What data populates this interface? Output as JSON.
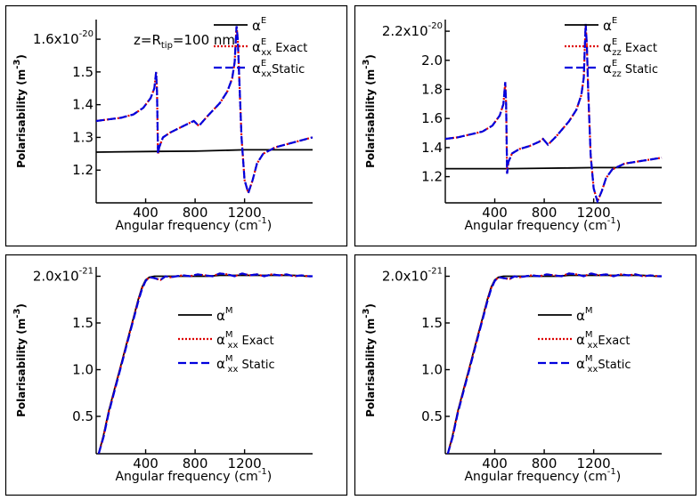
{
  "chart_data": [
    {
      "type": "line",
      "id": "p1",
      "annotation": {
        "parts": [
          {
            "t": "z=R"
          },
          {
            "t": "tip",
            "sub": true
          },
          {
            "t": "=100 nm"
          }
        ]
      },
      "xlabel": "Angular frequency (cm-1)",
      "xlabel_base": "Angular frequency (cm",
      "xlabel_sup": "-1",
      "xlabel_close": ")",
      "ylabel": "Polarisability (m-3)",
      "ylabel_base": "Polarisability (m",
      "ylabel_sup": "-3",
      "ylabel_close": ")",
      "xlim": [
        0,
        1750
      ],
      "ylim": [
        1.1,
        1.66
      ],
      "xticks": [
        400,
        800,
        1200
      ],
      "xticklabels": [
        "400",
        "800",
        "1200"
      ],
      "yticks": [
        1.2,
        1.3,
        1.4,
        1.5,
        1.6
      ],
      "yticklabels": [
        "1.2",
        "1.3",
        "1.4",
        "1.5",
        "1.6x10-20"
      ],
      "ytop_label": {
        "base": "1.6x10",
        "exp": "-20"
      },
      "legend": [
        {
          "label": "αE",
          "sym": "α",
          "sup": "E",
          "sub": "",
          "tail": ""
        },
        {
          "label": "αExx Exact",
          "sym": "α",
          "sup": "E",
          "sub": "xx",
          "tail": " Exact"
        },
        {
          "label": "αExx Static",
          "sym": "α",
          "sup": "E",
          "sub": "xx",
          "tail": "Static"
        }
      ],
      "series": [
        {
          "name": "αE",
          "style": "solid",
          "x": [
            0,
            500,
            800,
            1000,
            1200,
            1400,
            1750
          ],
          "y": [
            1.255,
            1.257,
            1.258,
            1.26,
            1.262,
            1.262,
            1.262
          ]
        },
        {
          "name": "αExx Exact",
          "style": "dotted",
          "x": [
            0,
            100,
            200,
            300,
            380,
            440,
            470,
            485,
            492,
            500,
            510,
            540,
            600,
            680,
            760,
            790,
            830,
            900,
            1000,
            1060,
            1100,
            1120,
            1135,
            1145,
            1155,
            1175,
            1200,
            1230,
            1265,
            1300,
            1350,
            1450,
            1600,
            1750
          ],
          "y": [
            1.35,
            1.355,
            1.36,
            1.37,
            1.39,
            1.42,
            1.45,
            1.5,
            1.44,
            1.25,
            1.27,
            1.3,
            1.315,
            1.33,
            1.345,
            1.35,
            1.335,
            1.365,
            1.405,
            1.44,
            1.48,
            1.53,
            1.64,
            1.6,
            1.5,
            1.3,
            1.17,
            1.13,
            1.17,
            1.22,
            1.25,
            1.27,
            1.285,
            1.3
          ]
        },
        {
          "name": "αExx Static",
          "style": "dashed",
          "x": [
            0,
            100,
            200,
            300,
            380,
            440,
            470,
            485,
            492,
            500,
            510,
            540,
            600,
            680,
            760,
            790,
            830,
            900,
            1000,
            1060,
            1100,
            1120,
            1135,
            1145,
            1155,
            1175,
            1200,
            1230,
            1265,
            1300,
            1350,
            1450,
            1600,
            1750
          ],
          "y": [
            1.35,
            1.355,
            1.36,
            1.37,
            1.39,
            1.42,
            1.45,
            1.5,
            1.44,
            1.25,
            1.27,
            1.3,
            1.315,
            1.33,
            1.345,
            1.35,
            1.335,
            1.365,
            1.405,
            1.44,
            1.48,
            1.53,
            1.64,
            1.6,
            1.5,
            1.3,
            1.17,
            1.13,
            1.17,
            1.22,
            1.25,
            1.27,
            1.285,
            1.3
          ]
        }
      ]
    },
    {
      "type": "line",
      "id": "p2",
      "xlabel": "Angular frequency (cm-1)",
      "xlabel_base": "Angular frequency (cm",
      "xlabel_sup": "-1",
      "xlabel_close": ")",
      "ylabel": "Polarisability (m-3)",
      "ylabel_base": "Polarisability (m",
      "ylabel_sup": "-3",
      "ylabel_close": ")",
      "xlim": [
        0,
        1750
      ],
      "ylim": [
        1.02,
        2.28
      ],
      "xticks": [
        400,
        800,
        1200
      ],
      "xticklabels": [
        "400",
        "800",
        "1200"
      ],
      "yticks": [
        1.2,
        1.4,
        1.6,
        1.8,
        2.0,
        2.2
      ],
      "yticklabels": [
        "1.2",
        "1.4",
        "1.6",
        "1.8",
        "2.0",
        "2.2x10-20"
      ],
      "ytop_label": {
        "base": "2.2x10",
        "exp": "-20"
      },
      "legend": [
        {
          "label": "αE",
          "sym": "α",
          "sup": "E",
          "sub": "",
          "tail": ""
        },
        {
          "label": "αEzz Exact",
          "sym": "α",
          "sup": "E",
          "sub": "zz",
          "tail": " Exact"
        },
        {
          "label": "αEzz Static",
          "sym": "α",
          "sup": "E",
          "sub": "zz",
          "tail": " Static"
        }
      ],
      "series": [
        {
          "name": "αE",
          "style": "solid",
          "x": [
            0,
            500,
            800,
            1000,
            1200,
            1400,
            1750
          ],
          "y": [
            1.255,
            1.255,
            1.258,
            1.26,
            1.262,
            1.262,
            1.262
          ]
        },
        {
          "name": "αEzz Exact",
          "style": "dotted",
          "x": [
            0,
            100,
            200,
            300,
            380,
            440,
            470,
            485,
            492,
            500,
            510,
            540,
            600,
            680,
            760,
            790,
            830,
            900,
            1000,
            1060,
            1100,
            1120,
            1135,
            1145,
            1155,
            1175,
            1200,
            1230,
            1265,
            1300,
            1350,
            1450,
            1600,
            1750
          ],
          "y": [
            1.46,
            1.47,
            1.49,
            1.51,
            1.55,
            1.62,
            1.7,
            1.85,
            1.7,
            1.22,
            1.3,
            1.36,
            1.39,
            1.41,
            1.44,
            1.46,
            1.42,
            1.48,
            1.58,
            1.66,
            1.76,
            1.88,
            2.25,
            2.1,
            1.8,
            1.35,
            1.12,
            1.03,
            1.1,
            1.19,
            1.25,
            1.29,
            1.31,
            1.33
          ]
        },
        {
          "name": "αEzz Static",
          "style": "dashed",
          "x": [
            0,
            100,
            200,
            300,
            380,
            440,
            470,
            485,
            492,
            500,
            510,
            540,
            600,
            680,
            760,
            790,
            830,
            900,
            1000,
            1060,
            1100,
            1120,
            1135,
            1145,
            1155,
            1175,
            1200,
            1230,
            1265,
            1300,
            1350,
            1450,
            1600,
            1750
          ],
          "y": [
            1.46,
            1.47,
            1.49,
            1.51,
            1.55,
            1.62,
            1.7,
            1.85,
            1.7,
            1.22,
            1.3,
            1.36,
            1.39,
            1.41,
            1.44,
            1.46,
            1.42,
            1.48,
            1.58,
            1.66,
            1.76,
            1.88,
            2.25,
            2.1,
            1.8,
            1.35,
            1.12,
            1.03,
            1.1,
            1.19,
            1.25,
            1.29,
            1.31,
            1.33
          ]
        }
      ]
    },
    {
      "type": "line",
      "id": "p3",
      "xlabel": "Angular frequency (cm-1)",
      "xlabel_base": "Angular frequency (cm",
      "xlabel_sup": "-1",
      "xlabel_close": ")",
      "ylabel": "Polarisability (m-3)",
      "ylabel_base": "Polarisability (m",
      "ylabel_sup": "-3",
      "ylabel_close": ")",
      "xlim": [
        0,
        1750
      ],
      "ylim": [
        0.1,
        2.1
      ],
      "xticks": [
        400,
        800,
        1200
      ],
      "xticklabels": [
        "400",
        "800",
        "1200"
      ],
      "yticks": [
        0.5,
        1.0,
        1.5,
        2.0
      ],
      "yticklabels": [
        "0.5",
        "1.0",
        "1.5",
        "2.0x10-21"
      ],
      "ytop_label": {
        "base": "2.0x10",
        "exp": "-21"
      },
      "legend": [
        {
          "label": "αM",
          "sym": "α",
          "sup": "M",
          "sub": "",
          "tail": ""
        },
        {
          "label": "αMxx Exact",
          "sym": "α",
          "sup": "M",
          "sub": "xx",
          "tail": " Exact"
        },
        {
          "label": "αMxx Static",
          "sym": "α",
          "sup": "M",
          "sub": "xx",
          "tail": " Static"
        }
      ],
      "series": [
        {
          "name": "αM",
          "style": "solid",
          "x": [
            20,
            60,
            100,
            150,
            200,
            250,
            300,
            340,
            370,
            400,
            430,
            470,
            520,
            600,
            700,
            800,
            900,
            1000,
            1100,
            1200,
            1300,
            1400,
            1500,
            1600,
            1700,
            1750
          ],
          "y": [
            0.1,
            0.3,
            0.55,
            0.8,
            1.05,
            1.3,
            1.55,
            1.75,
            1.88,
            1.96,
            1.99,
            2.0,
            2.0,
            2.0,
            2.0,
            2.0,
            2.0,
            2.01,
            2.01,
            2.01,
            2.01,
            2.01,
            2.01,
            2.01,
            2.0,
            2.0
          ]
        },
        {
          "name": "αMxx Exact",
          "style": "dotted",
          "x": [
            20,
            60,
            100,
            150,
            200,
            250,
            300,
            340,
            370,
            400,
            430,
            470,
            520,
            560,
            600,
            650,
            700,
            760,
            820,
            880,
            940,
            1000,
            1060,
            1120,
            1180,
            1240,
            1300,
            1360,
            1420,
            1480,
            1540,
            1600,
            1660,
            1720,
            1750
          ],
          "y": [
            0.1,
            0.29,
            0.54,
            0.79,
            1.04,
            1.29,
            1.54,
            1.74,
            1.87,
            1.95,
            1.99,
            1.98,
            1.96,
            2.0,
            1.99,
            2.0,
            2.01,
            2.0,
            2.02,
            2.01,
            2.0,
            2.03,
            2.02,
            2.0,
            2.03,
            2.01,
            2.02,
            2.0,
            2.02,
            2.01,
            2.02,
            2.0,
            2.01,
            2.0,
            2.0
          ]
        },
        {
          "name": "αMxx Static",
          "style": "dashed",
          "x": [
            20,
            60,
            100,
            150,
            200,
            250,
            300,
            340,
            370,
            400,
            430,
            470,
            520,
            560,
            600,
            650,
            700,
            760,
            820,
            880,
            940,
            1000,
            1060,
            1120,
            1180,
            1240,
            1300,
            1360,
            1420,
            1480,
            1540,
            1600,
            1660,
            1720,
            1750
          ],
          "y": [
            0.1,
            0.28,
            0.53,
            0.78,
            1.03,
            1.28,
            1.53,
            1.73,
            1.86,
            1.95,
            1.99,
            1.98,
            1.96,
            2.0,
            1.99,
            2.0,
            2.01,
            2.0,
            2.02,
            2.01,
            2.0,
            2.03,
            2.02,
            2.0,
            2.03,
            2.01,
            2.02,
            2.0,
            2.02,
            2.01,
            2.02,
            2.0,
            2.01,
            2.0,
            2.0
          ]
        }
      ]
    },
    {
      "type": "line",
      "id": "p4",
      "xlabel": "Angular frequency (cm-1)",
      "xlabel_base": "Angular frequency (cm",
      "xlabel_sup": "-1",
      "xlabel_close": ")",
      "ylabel": "Polarisability (m-3)",
      "ylabel_base": "Polarisability (m",
      "ylabel_sup": "-3",
      "ylabel_close": ")",
      "xlim": [
        0,
        1750
      ],
      "ylim": [
        0.1,
        2.1
      ],
      "xticks": [
        400,
        800,
        1200
      ],
      "xticklabels": [
        "400",
        "800",
        "1200"
      ],
      "yticks": [
        0.5,
        1.0,
        1.5,
        2.0
      ],
      "yticklabels": [
        "0.5",
        "1.0",
        "1.5",
        "2.0x10-21"
      ],
      "ytop_label": {
        "base": "2.0x10",
        "exp": "-21"
      },
      "legend": [
        {
          "label": "αM",
          "sym": "α",
          "sup": "M",
          "sub": "",
          "tail": ""
        },
        {
          "label": "αMxx Exact",
          "sym": "α",
          "sup": "M",
          "sub": "xx",
          "tail": "Exact"
        },
        {
          "label": "αMxx Static",
          "sym": "α",
          "sup": "M",
          "sub": "xx",
          "tail": "Static"
        }
      ],
      "series": [
        {
          "name": "αM",
          "style": "solid",
          "x": [
            20,
            60,
            100,
            150,
            200,
            250,
            300,
            340,
            370,
            400,
            430,
            470,
            520,
            600,
            700,
            800,
            900,
            1000,
            1100,
            1200,
            1300,
            1400,
            1500,
            1600,
            1700,
            1750
          ],
          "y": [
            0.1,
            0.3,
            0.55,
            0.8,
            1.05,
            1.3,
            1.55,
            1.75,
            1.88,
            1.96,
            1.99,
            2.0,
            2.0,
            2.0,
            2.0,
            2.0,
            2.0,
            2.01,
            2.01,
            2.01,
            2.01,
            2.01,
            2.01,
            2.01,
            2.0,
            2.0
          ]
        },
        {
          "name": "αMxx Exact",
          "style": "dotted",
          "x": [
            20,
            60,
            100,
            150,
            200,
            250,
            300,
            340,
            370,
            400,
            430,
            470,
            520,
            560,
            600,
            650,
            700,
            760,
            820,
            880,
            940,
            1000,
            1060,
            1120,
            1180,
            1240,
            1300,
            1360,
            1420,
            1480,
            1540,
            1600,
            1660,
            1720,
            1750
          ],
          "y": [
            0.1,
            0.29,
            0.54,
            0.79,
            1.04,
            1.29,
            1.54,
            1.74,
            1.87,
            1.95,
            1.99,
            1.98,
            1.97,
            2.0,
            1.99,
            2.0,
            2.01,
            2.0,
            2.02,
            2.01,
            2.0,
            2.03,
            2.02,
            2.0,
            2.03,
            2.01,
            2.02,
            2.0,
            2.02,
            2.01,
            2.02,
            2.0,
            2.01,
            2.0,
            2.0
          ]
        },
        {
          "name": "αMxx Static",
          "style": "dashed",
          "x": [
            20,
            60,
            100,
            150,
            200,
            250,
            300,
            340,
            370,
            400,
            430,
            470,
            520,
            560,
            600,
            650,
            700,
            760,
            820,
            880,
            940,
            1000,
            1060,
            1120,
            1180,
            1240,
            1300,
            1360,
            1420,
            1480,
            1540,
            1600,
            1660,
            1720,
            1750
          ],
          "y": [
            0.1,
            0.28,
            0.53,
            0.78,
            1.03,
            1.28,
            1.53,
            1.73,
            1.86,
            1.95,
            1.99,
            1.98,
            1.97,
            2.0,
            1.99,
            2.0,
            2.01,
            2.0,
            2.02,
            2.01,
            2.0,
            2.03,
            2.02,
            2.0,
            2.03,
            2.01,
            2.02,
            2.0,
            2.02,
            2.01,
            2.02,
            2.0,
            2.01,
            2.0,
            2.0
          ]
        }
      ]
    }
  ],
  "colors": {
    "solid": "#000000",
    "dotted": "#dd0000",
    "dashed": "#0000dd",
    "frame": "#000000"
  }
}
